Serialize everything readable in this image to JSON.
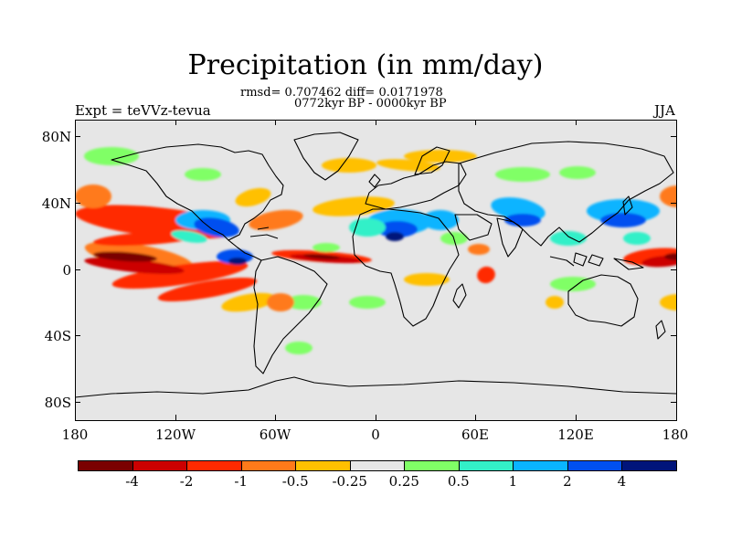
{
  "title": "Precipitation (in mm/day)",
  "stats": "rmsd= 0.707462  diff= 0.0171978",
  "period": "0772kyr BP - 0000kyr BP",
  "expt": "Expt = teVVz-tevua",
  "season": "JJA",
  "lat_labels": [
    "80N",
    "40N",
    "0",
    "40S",
    "80S"
  ],
  "lon_labels": [
    "180",
    "120W",
    "60W",
    "0",
    "60E",
    "120E",
    "180"
  ],
  "colorbar": {
    "colors": [
      "#7a0000",
      "#cc0000",
      "#ff2a00",
      "#ff7a1a",
      "#ffc000",
      "#e6e6e6",
      "#80ff66",
      "#33f0c8",
      "#0ab4ff",
      "#0050f0",
      "#00147a"
    ],
    "labels": [
      "-4",
      "-2",
      "-1",
      "-0.5",
      "-0.25",
      "0.25",
      "0.5",
      "1",
      "2",
      "4"
    ]
  },
  "colors": {
    "background": "#e6e6e6",
    "coast": "#000000"
  }
}
